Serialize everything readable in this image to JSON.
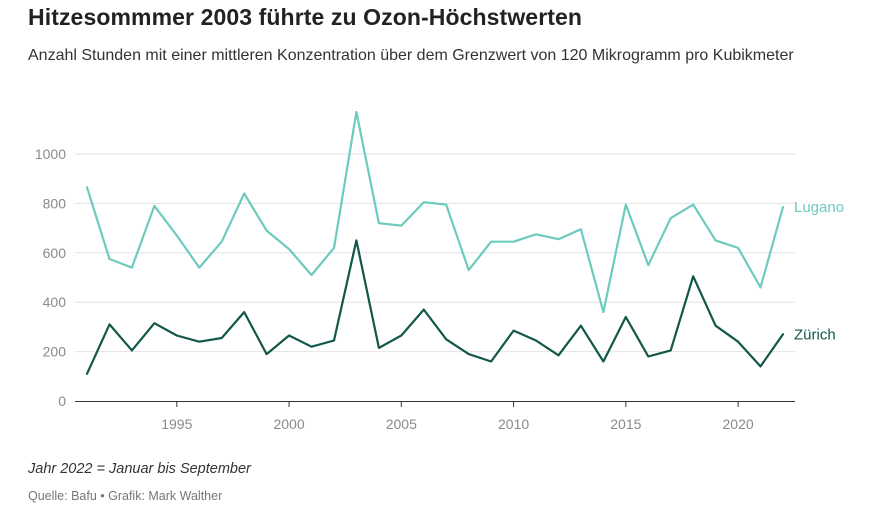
{
  "header": {
    "title": "Hitzesommmer 2003 führte zu Ozon-Höchstwerten",
    "subtitle": "Anzahl Stunden mit einer mittleren Konzentration über dem Grenzwert von 120 Mikrogramm pro Kubikmeter"
  },
  "footer": {
    "note": "Jahr 2022 = Januar bis September",
    "source": "Quelle: Bafu • Grafik: Mark Walther"
  },
  "chart_data": {
    "type": "line",
    "title": "Hitzesommmer 2003 führte zu Ozon-Höchstwerten",
    "subtitle": "Anzahl Stunden mit einer mittleren Konzentration über dem Grenzwert von 120 Mikrogramm pro Kubikmeter",
    "xlabel": "",
    "ylabel": "",
    "x": [
      1991,
      1992,
      1993,
      1994,
      1995,
      1996,
      1997,
      1998,
      1999,
      2000,
      2001,
      2002,
      2003,
      2004,
      2005,
      2006,
      2007,
      2008,
      2009,
      2010,
      2011,
      2012,
      2013,
      2014,
      2015,
      2016,
      2017,
      2018,
      2019,
      2020,
      2021,
      2022
    ],
    "xlim": [
      1991,
      2022.5
    ],
    "ylim": [
      0,
      1150
    ],
    "xticks": [
      1995,
      2000,
      2005,
      2010,
      2015,
      2020
    ],
    "yticks": [
      0,
      200,
      400,
      600,
      800,
      1000
    ],
    "grid": true,
    "series": [
      {
        "name": "Lugano",
        "color": "#6dcbbd",
        "values": [
          865,
          575,
          540,
          790,
          670,
          540,
          645,
          840,
          690,
          615,
          510,
          620,
          1170,
          720,
          710,
          805,
          795,
          530,
          645,
          645,
          675,
          655,
          695,
          360,
          795,
          550,
          740,
          795,
          650,
          620,
          460,
          785
        ]
      },
      {
        "name": "Zürich",
        "color": "#12574a",
        "values": [
          110,
          310,
          205,
          315,
          265,
          240,
          255,
          360,
          190,
          265,
          220,
          245,
          650,
          215,
          265,
          370,
          250,
          190,
          160,
          285,
          245,
          185,
          305,
          160,
          340,
          180,
          205,
          505,
          305,
          240,
          140,
          270
        ]
      }
    ]
  }
}
